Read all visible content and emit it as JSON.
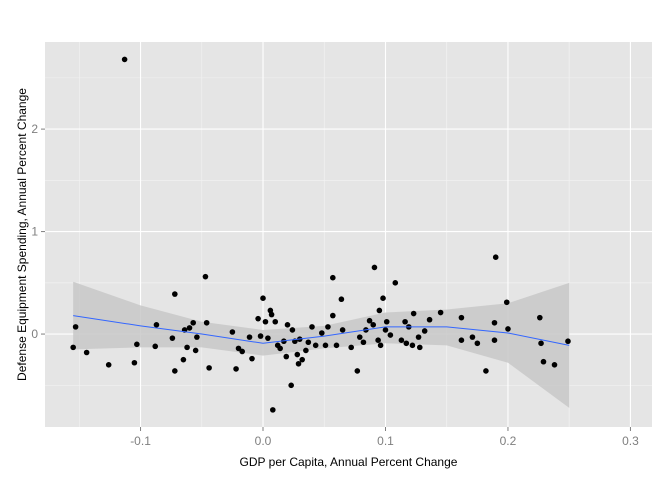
{
  "chart_data": {
    "type": "scatter",
    "xlabel": "GDP per Capita, Annual Percent Change",
    "ylabel": "Defense Equipment Spending, Annual Percent Change",
    "xlim": [
      -0.178,
      0.3176
    ],
    "ylim": [
      -0.907,
      2.85
    ],
    "xticks": [
      -0.1,
      {
        "value": 0,
        "label": "0.0"
      },
      0.1,
      0.2,
      0.3
    ],
    "yticks": [
      0,
      1,
      2
    ],
    "grid": true,
    "minor_grid": true,
    "point_color": "#000000",
    "x": [
      -0.155,
      -0.153,
      -0.144,
      -0.126,
      -0.113,
      -0.105,
      -0.103,
      -0.088,
      -0.087,
      -0.074,
      -0.072,
      -0.072,
      -0.065,
      -0.064,
      -0.062,
      -0.06,
      -0.057,
      -0.055,
      -0.054,
      -0.047,
      -0.046,
      -0.044,
      -0.025,
      -0.022,
      -0.02,
      -0.017,
      -0.011,
      -0.009,
      -0.004,
      -0.002,
      0,
      0.002,
      0.004,
      0.006,
      0.007,
      0.008,
      0.01,
      0.012,
      0.014,
      0.017,
      0.019,
      0.02,
      0.023,
      0.024,
      0.026,
      0.028,
      0.029,
      0.03,
      0.032,
      0.035,
      0.037,
      0.04,
      0.043,
      0.048,
      0.051,
      0.053,
      0.057,
      0.057,
      0.06,
      0.064,
      0.065,
      0.072,
      0.077,
      0.079,
      0.082,
      0.084,
      0.087,
      0.09,
      0.091,
      0.094,
      0.095,
      0.096,
      0.098,
      0.1,
      0.101,
      0.104,
      0.108,
      0.113,
      0.116,
      0.117,
      0.119,
      0.122,
      0.123,
      0.127,
      0.128,
      0.132,
      0.136,
      0.145,
      0.162,
      0.162,
      0.171,
      0.175,
      0.182,
      0.189,
      0.189,
      0.19,
      0.199,
      0.2,
      0.226,
      0.227,
      0.229,
      0.238,
      0.249
    ],
    "y": [
      -0.13,
      0.07,
      -0.18,
      -0.3,
      2.68,
      -0.28,
      -0.1,
      -0.12,
      0.09,
      -0.04,
      0.39,
      -0.36,
      -0.25,
      0.04,
      -0.13,
      0.06,
      0.11,
      -0.16,
      -0.03,
      0.56,
      0.11,
      -0.33,
      0.02,
      -0.34,
      -0.14,
      -0.17,
      -0.03,
      -0.24,
      0.15,
      -0.02,
      0.35,
      0.12,
      -0.04,
      0.23,
      0.19,
      -0.74,
      0.12,
      -0.11,
      -0.14,
      -0.07,
      -0.22,
      0.09,
      -0.5,
      0.04,
      -0.07,
      -0.2,
      -0.29,
      -0.05,
      -0.25,
      -0.16,
      -0.08,
      0.07,
      -0.11,
      0.01,
      -0.11,
      0.07,
      0.55,
      0.18,
      -0.11,
      0.34,
      0.04,
      -0.13,
      -0.36,
      -0.03,
      -0.08,
      0.04,
      0.13,
      0.09,
      0.65,
      -0.06,
      0.23,
      -0.11,
      0.35,
      0.04,
      0.12,
      -0.01,
      0.5,
      -0.06,
      0.12,
      -0.09,
      0.07,
      -0.11,
      0.2,
      -0.03,
      -0.13,
      0.03,
      0.14,
      0.21,
      -0.06,
      0.16,
      -0.03,
      -0.09,
      -0.36,
      -0.06,
      0.11,
      0.75,
      0.31,
      0.05,
      0.16,
      -0.09,
      -0.27,
      -0.3,
      -0.07
    ],
    "smooth": {
      "color": "#3366ff",
      "band_color": "#c8c8c8",
      "x": [
        -0.155,
        -0.1,
        -0.05,
        0,
        0.05,
        0.1,
        0.15,
        0.2,
        0.25
      ],
      "y": [
        0.18,
        0.08,
        0,
        -0.09,
        -0.02,
        0.07,
        0.07,
        0.01,
        -0.11
      ],
      "ymin": [
        -0.15,
        -0.13,
        -0.13,
        -0.21,
        -0.14,
        -0.09,
        -0.11,
        -0.28,
        -0.72
      ],
      "ymax": [
        0.51,
        0.28,
        0.12,
        0.04,
        0.08,
        0.21,
        0.24,
        0.3,
        0.5
      ]
    }
  }
}
